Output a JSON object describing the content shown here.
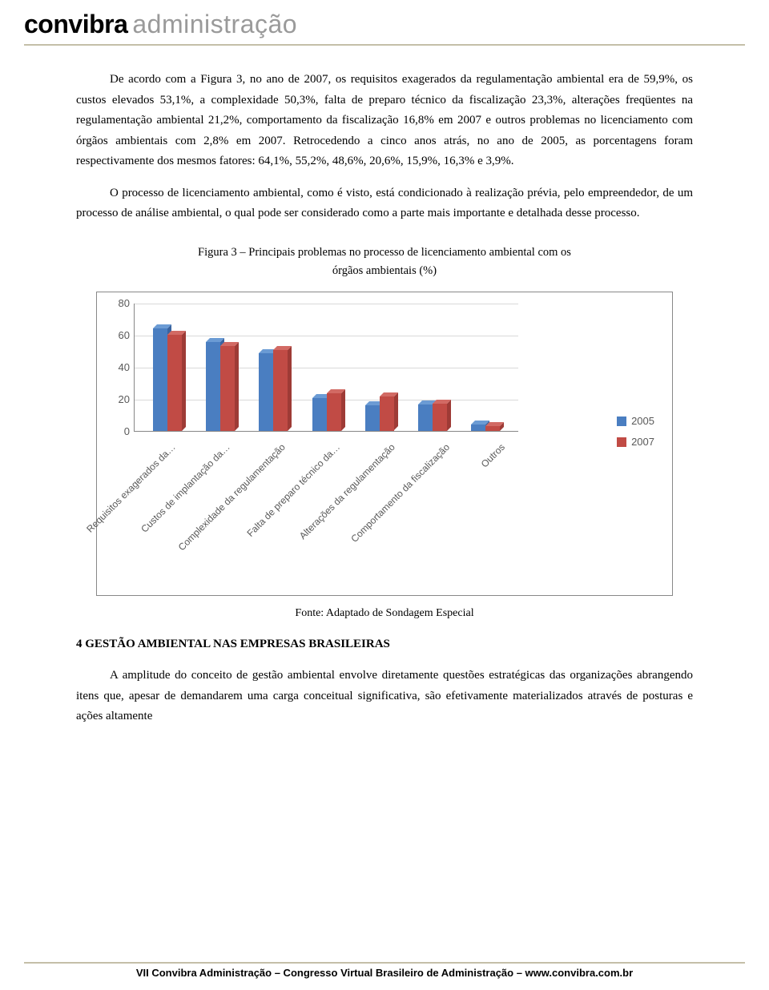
{
  "header": {
    "logo_left": "convibra",
    "logo_right": "administração"
  },
  "paragraphs": {
    "p1": "De acordo com a Figura 3, no ano de 2007, os requisitos exagerados da regulamentação ambiental era de 59,9%, os custos elevados 53,1%, a complexidade 50,3%, falta de preparo técnico da fiscalização 23,3%, alterações freqüentes na regulamentação ambiental 21,2%, comportamento da fiscalização 16,8% em 2007 e outros problemas no licenciamento com órgãos ambientais com 2,8% em 2007. Retrocedendo a cinco anos atrás, no ano de 2005, as porcentagens foram respectivamente dos mesmos fatores: 64,1%, 55,2%, 48,6%, 20,6%, 15,9%, 16,3% e 3,9%.",
    "p2": "O processo de licenciamento ambiental, como é visto, está condicionado à realização prévia, pelo empreendedor, de um processo de análise ambiental, o qual pode ser considerado como a parte mais importante e detalhada desse processo.",
    "p3": "A amplitude do conceito de gestão ambiental envolve diretamente questões estratégicas das organizações abrangendo itens que, apesar de demandarem uma carga conceitual significativa, são efetivamente materializados através de posturas e ações altamente"
  },
  "figure_caption": {
    "line1": "Figura 3 – Principais problemas no processo de licenciamento ambiental com os",
    "line2": "órgãos ambientais (%)"
  },
  "source_caption": "Fonte: Adaptado de Sondagem Especial",
  "section_heading": "4 GESTÃO AMBIENTAL NAS EMPRESAS BRASILEIRAS",
  "footer": "VII Convibra Administração – Congresso Virtual Brasileiro de Administração – www.convibra.com.br",
  "chart": {
    "type": "bar",
    "ylim": [
      0,
      80
    ],
    "ytick_step": 20,
    "yticks": [
      "0",
      "20",
      "40",
      "60",
      "80"
    ],
    "categories": [
      "Requisitos exagerados da…",
      "Custos de implantação da…",
      "Complexidade da regulamentação",
      "Falta de preparo técnico da…",
      "Alterações da regulamentação",
      "Comportamento da fiscalização",
      "Outros"
    ],
    "series": [
      {
        "name": "2005",
        "color_face": "#4a7ec1",
        "color_side": "#3a64a0",
        "color_top": "#6b9bd4",
        "values": [
          64.1,
          55.2,
          48.6,
          20.6,
          15.9,
          16.3,
          3.9
        ]
      },
      {
        "name": "2007",
        "color_face": "#c14b45",
        "color_side": "#9e3b36",
        "color_top": "#d26a64",
        "values": [
          59.9,
          53.1,
          50.3,
          23.3,
          21.2,
          16.8,
          2.8
        ]
      }
    ],
    "grid_color": "#d9d9d9",
    "axis_color": "#878787",
    "label_fontsize": 12,
    "tick_fontsize": 13,
    "background_color": "#ffffff"
  }
}
